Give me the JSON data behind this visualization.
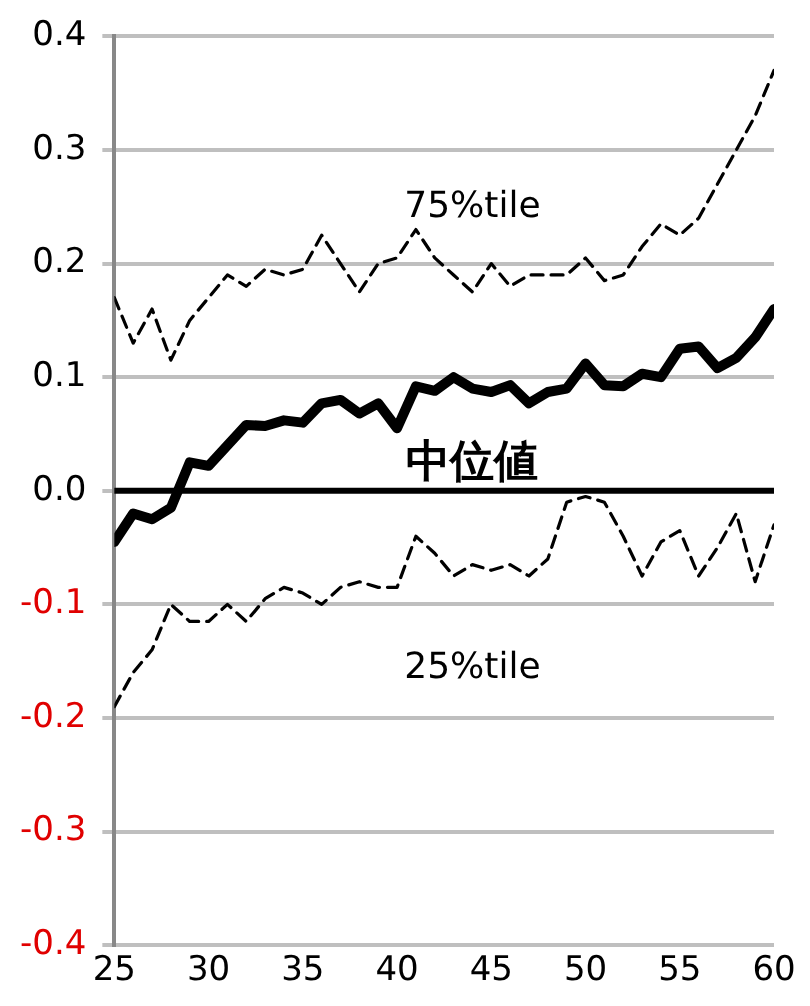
{
  "chart_data": {
    "type": "line",
    "x": [
      25,
      26,
      27,
      28,
      29,
      30,
      31,
      32,
      33,
      34,
      35,
      36,
      37,
      38,
      39,
      40,
      41,
      42,
      43,
      44,
      45,
      46,
      47,
      48,
      49,
      50,
      51,
      52,
      53,
      54,
      55,
      56,
      57,
      58,
      59,
      60
    ],
    "xlim": [
      25,
      60
    ],
    "xticks": [
      25,
      30,
      35,
      40,
      45,
      50,
      55,
      60
    ],
    "ylim": [
      -0.4,
      0.4
    ],
    "yticks": [
      {
        "value": -0.4,
        "label": "-0.4"
      },
      {
        "value": -0.3,
        "label": "-0.3"
      },
      {
        "value": -0.2,
        "label": "-0.2"
      },
      {
        "value": -0.1,
        "label": "-0.1"
      },
      {
        "value": 0,
        "label": "0.0"
      },
      {
        "value": 0.1,
        "label": "0.1"
      },
      {
        "value": 0.2,
        "label": "0.2"
      },
      {
        "value": 0.3,
        "label": "0.3"
      },
      {
        "value": 0.4,
        "label": "0.4"
      }
    ],
    "grid": "y",
    "legend": false,
    "marker": "none",
    "series": [
      {
        "name": "75%tile",
        "color": "#000000",
        "line_style": "dashed",
        "values": [
          0.17,
          0.13,
          0.16,
          0.115,
          0.15,
          0.17,
          0.19,
          0.18,
          0.195,
          0.19,
          0.195,
          0.225,
          0.2,
          0.175,
          0.2,
          0.205,
          0.23,
          0.205,
          0.19,
          0.175,
          0.2,
          0.18,
          0.19,
          0.19,
          0.19,
          0.205,
          0.185,
          0.19,
          0.215,
          0.235,
          0.225,
          0.24,
          0.27,
          0.3,
          0.33,
          0.37
        ]
      },
      {
        "name": "中位値",
        "color": "#000000",
        "line_style": "solid",
        "values": [
          -0.045,
          -0.02,
          -0.025,
          -0.015,
          0.025,
          0.022,
          0.04,
          0.058,
          0.057,
          0.062,
          0.06,
          0.077,
          0.08,
          0.068,
          0.077,
          0.055,
          0.092,
          0.088,
          0.1,
          0.09,
          0.087,
          0.093,
          0.077,
          0.087,
          0.09,
          0.112,
          0.093,
          0.092,
          0.103,
          0.1,
          0.125,
          0.127,
          0.108,
          0.117,
          0.135,
          0.16
        ]
      },
      {
        "name": "25%tile",
        "color": "#000000",
        "line_style": "dashed",
        "values": [
          -0.19,
          -0.16,
          -0.14,
          -0.1,
          -0.115,
          -0.115,
          -0.1,
          -0.115,
          -0.095,
          -0.085,
          -0.09,
          -0.1,
          -0.085,
          -0.08,
          -0.085,
          -0.085,
          -0.04,
          -0.055,
          -0.075,
          -0.065,
          -0.07,
          -0.065,
          -0.075,
          -0.06,
          -0.01,
          -0.005,
          -0.01,
          -0.04,
          -0.075,
          -0.045,
          -0.035,
          -0.075,
          -0.05,
          -0.02,
          -0.08,
          -0.03
        ]
      }
    ],
    "ref_lines": [
      {
        "axis": "y",
        "value": 0,
        "color": "#000000"
      }
    ]
  }
}
